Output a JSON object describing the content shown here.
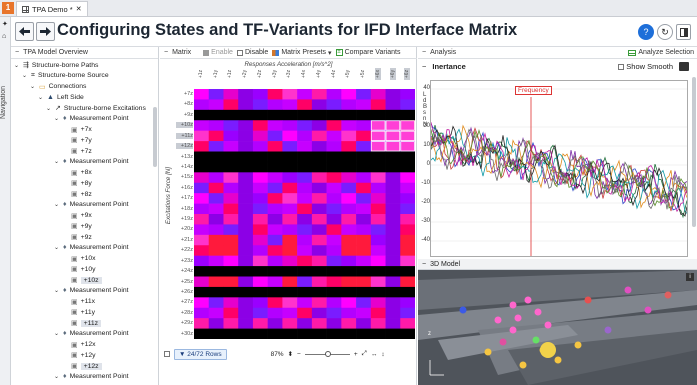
{
  "app": {
    "tag": "1",
    "tab_label": "TPA Demo *",
    "title": "Configuring States and TF-Variants for IFD Interface Matrix"
  },
  "sidenav": {
    "label": "Navigation"
  },
  "tree": {
    "header": "TPA Model Overview",
    "items": [
      {
        "label": "Structure-borne Paths",
        "level": 0,
        "icon": "paths-icon"
      },
      {
        "label": "Structure-borne Source",
        "level": 1,
        "icon": "source-icon"
      },
      {
        "label": "Connections",
        "level": 2,
        "icon": "folder-icon"
      },
      {
        "label": "Left Side",
        "level": 3,
        "icon": "side-icon"
      },
      {
        "label": "Structure-borne Excitations",
        "level": 4,
        "icon": "excitation-icon"
      },
      {
        "label": "Measurement Point",
        "level": 5,
        "icon": "pin-icon"
      },
      {
        "label": "+7x",
        "level": 6,
        "icon": "channel-icon"
      },
      {
        "label": "+7y",
        "level": 6,
        "icon": "channel-icon"
      },
      {
        "label": "+7z",
        "level": 6,
        "icon": "channel-icon"
      },
      {
        "label": "Measurement Point",
        "level": 5,
        "icon": "pin-icon"
      },
      {
        "label": "+8x",
        "level": 6,
        "icon": "channel-icon"
      },
      {
        "label": "+8y",
        "level": 6,
        "icon": "channel-icon"
      },
      {
        "label": "+8z",
        "level": 6,
        "icon": "channel-icon"
      },
      {
        "label": "Measurement Point",
        "level": 5,
        "icon": "pin-icon"
      },
      {
        "label": "+9x",
        "level": 6,
        "icon": "channel-icon"
      },
      {
        "label": "+9y",
        "level": 6,
        "icon": "channel-icon"
      },
      {
        "label": "+9z",
        "level": 6,
        "icon": "channel-icon"
      },
      {
        "label": "Measurement Point",
        "level": 5,
        "icon": "pin-icon"
      },
      {
        "label": "+10x",
        "level": 6,
        "icon": "channel-icon"
      },
      {
        "label": "+10y",
        "level": 6,
        "icon": "channel-icon"
      },
      {
        "label": "+10z",
        "level": 6,
        "icon": "channel-icon",
        "selected": true
      },
      {
        "label": "Measurement Point",
        "level": 5,
        "icon": "pin-icon"
      },
      {
        "label": "+11x",
        "level": 6,
        "icon": "channel-icon"
      },
      {
        "label": "+11y",
        "level": 6,
        "icon": "channel-icon"
      },
      {
        "label": "+11z",
        "level": 6,
        "icon": "channel-icon",
        "selected": true
      },
      {
        "label": "Measurement Point",
        "level": 5,
        "icon": "pin-icon"
      },
      {
        "label": "+12x",
        "level": 6,
        "icon": "channel-icon"
      },
      {
        "label": "+12y",
        "level": 6,
        "icon": "channel-icon"
      },
      {
        "label": "+12z",
        "level": 6,
        "icon": "channel-icon",
        "selected": true
      },
      {
        "label": "Measurement Point",
        "level": 5,
        "icon": "pin-icon"
      }
    ]
  },
  "matrix": {
    "header": "Matrix",
    "enable_label": "Enable",
    "disable_label": "Disable",
    "presets_label": "Matrix Presets",
    "compare_label": "Compare Variants",
    "x_title": "Responses Acceleration [m/s^2]",
    "y_title": "Excitations Force [N]",
    "columns": [
      "+1z",
      "+1y",
      "+1z",
      "+2y",
      "+2z",
      "+3y",
      "+3z",
      "+4x",
      "+4y",
      "+4z",
      "+5y",
      "+5z",
      "+6x",
      "+6y",
      "+6z"
    ],
    "rows": [
      "+7z",
      "+8z",
      "+9z",
      "+10z",
      "+11z",
      "+12z",
      "+13z",
      "+14z",
      "+15z",
      "+16z",
      "+17z",
      "+18z",
      "+19z",
      "+20z",
      "+21z",
      "+22z",
      "+23z",
      "+24z",
      "+25z",
      "+26z",
      "+27z",
      "+28z",
      "+29z",
      "+30z"
    ],
    "rows_button": "24/72 Rows",
    "zoom": "87%"
  },
  "analysis": {
    "header": "Analysis",
    "analyze_label": "Analyze Selection",
    "plot_title": "Inertance",
    "smooth_label": "Show Smooth",
    "marker_label": "Frequency",
    "y_letters": [
      "L",
      "d",
      "B",
      "s",
      "n",
      "N"
    ],
    "y_ticks": [
      "40",
      "20",
      "10",
      "0",
      "-10",
      "-20",
      "-30",
      "-40"
    ]
  },
  "model": {
    "header": "3D Model",
    "axis_label": "z"
  }
}
